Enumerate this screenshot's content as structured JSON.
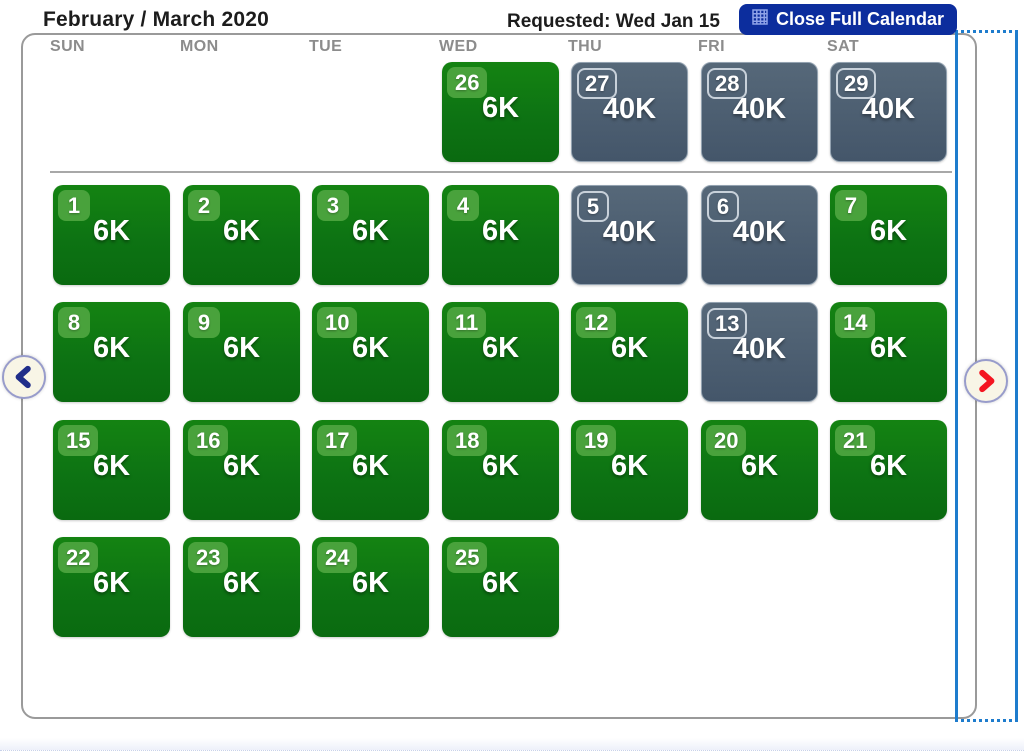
{
  "header": {
    "title": "February / March 2020",
    "requested": "Requested: Wed Jan 15",
    "close_button_label": "Close Full Calendar",
    "close_button_icon": "calendar-grid-icon"
  },
  "calendar": {
    "day_headers": [
      "SUN",
      "MON",
      "TUE",
      "WED",
      "THU",
      "FRI",
      "SAT"
    ],
    "weeks": [
      [
        null,
        null,
        null,
        {
          "day": 26,
          "value": "6K",
          "type": "saver"
        },
        {
          "day": 27,
          "value": "40K",
          "type": "standard"
        },
        {
          "day": 28,
          "value": "40K",
          "type": "standard"
        },
        {
          "day": 29,
          "value": "40K",
          "type": "standard"
        }
      ],
      [
        {
          "day": 1,
          "value": "6K",
          "type": "saver"
        },
        {
          "day": 2,
          "value": "6K",
          "type": "saver"
        },
        {
          "day": 3,
          "value": "6K",
          "type": "saver"
        },
        {
          "day": 4,
          "value": "6K",
          "type": "saver"
        },
        {
          "day": 5,
          "value": "40K",
          "type": "standard"
        },
        {
          "day": 6,
          "value": "40K",
          "type": "standard"
        },
        {
          "day": 7,
          "value": "6K",
          "type": "saver"
        }
      ],
      [
        {
          "day": 8,
          "value": "6K",
          "type": "saver"
        },
        {
          "day": 9,
          "value": "6K",
          "type": "saver"
        },
        {
          "day": 10,
          "value": "6K",
          "type": "saver"
        },
        {
          "day": 11,
          "value": "6K",
          "type": "saver"
        },
        {
          "day": 12,
          "value": "6K",
          "type": "saver"
        },
        {
          "day": 13,
          "value": "40K",
          "type": "standard"
        },
        {
          "day": 14,
          "value": "6K",
          "type": "saver"
        }
      ],
      [
        {
          "day": 15,
          "value": "6K",
          "type": "saver"
        },
        {
          "day": 16,
          "value": "6K",
          "type": "saver"
        },
        {
          "day": 17,
          "value": "6K",
          "type": "saver"
        },
        {
          "day": 18,
          "value": "6K",
          "type": "saver"
        },
        {
          "day": 19,
          "value": "6K",
          "type": "saver"
        },
        {
          "day": 20,
          "value": "6K",
          "type": "saver"
        },
        {
          "day": 21,
          "value": "6K",
          "type": "saver"
        }
      ],
      [
        {
          "day": 22,
          "value": "6K",
          "type": "saver"
        },
        {
          "day": 23,
          "value": "6K",
          "type": "saver"
        },
        {
          "day": 24,
          "value": "6K",
          "type": "saver"
        },
        {
          "day": 25,
          "value": "6K",
          "type": "saver"
        },
        null,
        null,
        null
      ]
    ]
  },
  "nav": {
    "prev_icon": "chevron-left-icon",
    "next_icon": "chevron-right-icon",
    "highlight_column": "selected-empty-column"
  },
  "colors": {
    "button_navy": "#0c2d9d",
    "saver_green_top": "#148312",
    "saver_green_bottom": "#0a6a10",
    "saver_badge_green": "#49a23c",
    "standard_gray_top": "#566879",
    "standard_gray_bottom": "#44566a",
    "highlight_blue": "#1e7ccd",
    "prev_arrow_navy": "#202e8a",
    "next_arrow_red": "#f41520"
  }
}
